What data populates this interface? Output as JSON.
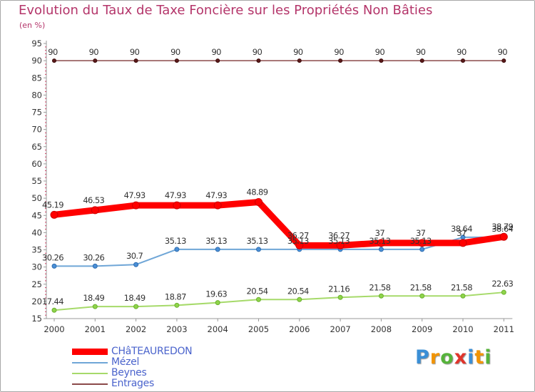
{
  "title": "Evolution du Taux de Taxe Foncière sur les Propriétés Non Bâties",
  "subtitle": "(en %)",
  "chart_data": {
    "type": "line",
    "title": "Evolution du Taux de Taxe Foncière sur les Propriétés Non Bâties",
    "ylabel": "(en %)",
    "xlabel": "",
    "ylim": [
      15,
      95
    ],
    "yticks": [
      "15",
      "20",
      "25",
      "30",
      "35",
      "40",
      "45",
      "50",
      "55",
      "60",
      "65",
      "70",
      "75",
      "80",
      "85",
      "90",
      "95"
    ],
    "categories": [
      "2000",
      "2001",
      "2002",
      "2003",
      "2004",
      "2005",
      "2006",
      "2007",
      "2008",
      "2009",
      "2010",
      "2011"
    ],
    "series": [
      {
        "name": "CHâTEAUREDON",
        "color": "#ff0000",
        "values": [
          45.19,
          46.53,
          47.93,
          47.93,
          47.93,
          48.89,
          36.27,
          36.27,
          37,
          37,
          37,
          38.79
        ],
        "labels": [
          "45.19",
          "46.53",
          "47.93",
          "47.93",
          "47.93",
          "48.89",
          "36.27",
          "36.27",
          "37",
          "37",
          "37",
          "38.79"
        ]
      },
      {
        "name": "Mézel",
        "color": "#6fa6d7",
        "values": [
          30.26,
          30.26,
          30.7,
          35.13,
          35.13,
          35.13,
          35.13,
          35.13,
          35.13,
          35.13,
          38.64,
          38.64
        ],
        "labels": [
          "30.26",
          "30.26",
          "30.7",
          "35.13",
          "35.13",
          "35.13",
          "35.13",
          "35.13",
          "35.13",
          "35.13",
          "38.64",
          "38.64"
        ]
      },
      {
        "name": "Beynes",
        "color": "#a6da6a",
        "values": [
          17.44,
          18.49,
          18.49,
          18.87,
          19.63,
          20.54,
          20.54,
          21.16,
          21.58,
          21.58,
          21.58,
          22.63
        ],
        "labels": [
          "17.44",
          "18.49",
          "18.49",
          "18.87",
          "19.63",
          "20.54",
          "20.54",
          "21.16",
          "21.58",
          "21.58",
          "21.58",
          "22.63"
        ]
      },
      {
        "name": "Entrages",
        "color": "#8b4a4a",
        "values": [
          90,
          90,
          90,
          90,
          90,
          90,
          90,
          90,
          90,
          90,
          90,
          90
        ],
        "labels": [
          "90",
          "90",
          "90",
          "90",
          "90",
          "90",
          "90",
          "90",
          "90",
          "90",
          "90",
          "90"
        ]
      }
    ],
    "legend": "bottom-left",
    "grid": false
  },
  "legend": {
    "items": [
      {
        "label": "CHâTEAUREDON",
        "color": "#ff0000"
      },
      {
        "label": "Mézel",
        "color": "#6fa6d7"
      },
      {
        "label": "Beynes",
        "color": "#a6da6a"
      },
      {
        "label": "Entrages",
        "color": "#8b4a4a"
      }
    ]
  },
  "logo": {
    "letters": [
      "P",
      "r",
      "o",
      "x",
      "i",
      "t",
      "i"
    ],
    "colors": [
      "#3b8fd6",
      "#f29400",
      "#56b33b",
      "#e0342b",
      "#3b8fd6",
      "#f29400",
      "#56b33b"
    ]
  }
}
